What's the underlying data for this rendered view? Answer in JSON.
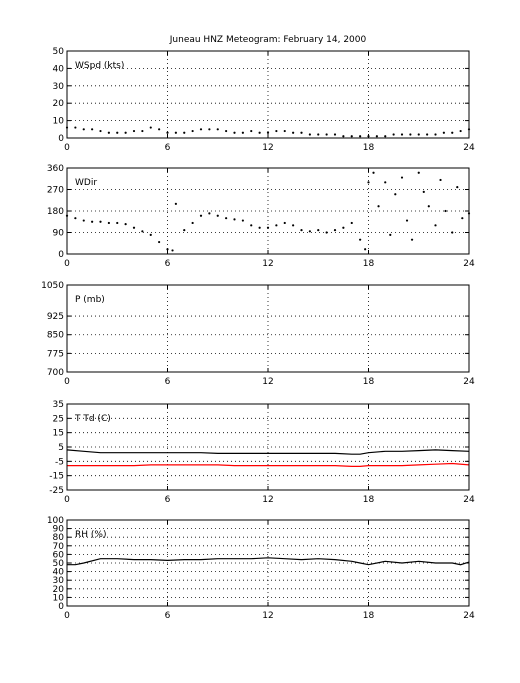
{
  "title": "Juneau HNZ Meteogram:  February 14, 2000",
  "chart_data": [
    {
      "type": "scatter",
      "panel_label": "WSpd (kts)",
      "xlim": [
        0,
        24
      ],
      "ylim": [
        0,
        50
      ],
      "xticks": [
        0,
        6,
        12,
        18,
        24
      ],
      "yticks": [
        0,
        10,
        20,
        30,
        40,
        50
      ],
      "grid": true,
      "series": [
        {
          "style": "dots",
          "color": "#000000",
          "x": [
            0,
            0.5,
            1,
            1.5,
            2,
            2.5,
            3,
            3.5,
            4,
            4.5,
            5,
            5.5,
            6,
            6.5,
            7,
            7.5,
            8,
            8.5,
            9,
            9.5,
            10,
            10.5,
            11,
            11.5,
            12,
            12.5,
            13,
            13.5,
            14,
            14.5,
            15,
            15.5,
            16,
            16.5,
            17,
            17.5,
            18,
            18.5,
            19,
            19.5,
            20,
            20.5,
            21,
            21.5,
            22,
            22.5,
            23,
            23.5,
            24
          ],
          "values": [
            6,
            6,
            5,
            5,
            4,
            3,
            3,
            3,
            4,
            4,
            6,
            5,
            3,
            3,
            3,
            4,
            5,
            5,
            5,
            4,
            3,
            3,
            4,
            3,
            3,
            4,
            4,
            3,
            3,
            2,
            2,
            2,
            2,
            1,
            1,
            1,
            1,
            1,
            1,
            2,
            2,
            2,
            2,
            2,
            2,
            3,
            3,
            4,
            5
          ]
        }
      ]
    },
    {
      "type": "scatter",
      "panel_label": "WDir",
      "xlim": [
        0,
        24
      ],
      "ylim": [
        0,
        360
      ],
      "xticks": [
        0,
        6,
        12,
        18,
        24
      ],
      "yticks": [
        0,
        90,
        180,
        270,
        360
      ],
      "grid": true,
      "series": [
        {
          "style": "dots",
          "color": "#000000",
          "x": [
            0,
            0.5,
            1,
            1.5,
            2,
            2.5,
            3,
            3.5,
            4,
            4.5,
            5,
            5.5,
            6,
            6.3,
            6.5,
            7,
            7.5,
            8,
            8.5,
            9,
            9.5,
            10,
            10.5,
            11,
            11.5,
            12,
            12.5,
            13,
            13.5,
            14,
            14.5,
            15,
            15.5,
            16,
            16.5,
            17,
            17.5,
            17.8,
            18,
            18.3,
            18.6,
            19,
            19.3,
            19.6,
            20,
            20.3,
            20.6,
            21,
            21.3,
            21.6,
            22,
            22.3,
            22.6,
            23,
            23.3,
            23.6,
            24
          ],
          "values": [
            160,
            150,
            140,
            135,
            135,
            130,
            130,
            125,
            110,
            95,
            80,
            50,
            20,
            15,
            210,
            100,
            130,
            160,
            170,
            160,
            150,
            145,
            140,
            120,
            110,
            110,
            120,
            130,
            120,
            100,
            95,
            100,
            90,
            100,
            110,
            130,
            60,
            20,
            300,
            340,
            200,
            300,
            80,
            250,
            320,
            140,
            60,
            340,
            260,
            200,
            120,
            310,
            180,
            90,
            280,
            150,
            170
          ]
        }
      ]
    },
    {
      "type": "scatter",
      "panel_label": "P (mb)",
      "xlim": [
        0,
        24
      ],
      "ylim": [
        700,
        1050
      ],
      "xticks": [
        0,
        6,
        12,
        18,
        24
      ],
      "yticks": [
        700,
        775,
        850,
        925,
        1050
      ],
      "grid": true,
      "series": []
    },
    {
      "type": "line",
      "panel_label": "T Td (C)",
      "xlim": [
        0,
        24
      ],
      "ylim": [
        -25,
        35
      ],
      "xticks": [
        0,
        6,
        12,
        18,
        24
      ],
      "yticks": [
        -25,
        -15,
        -5,
        5,
        15,
        25,
        35
      ],
      "grid": true,
      "series": [
        {
          "color": "#000000",
          "x": [
            0,
            1,
            2,
            3,
            4,
            5,
            6,
            7,
            8,
            9,
            10,
            11,
            12,
            13,
            14,
            15,
            16,
            17,
            17.5,
            18,
            19,
            20,
            21,
            22,
            23,
            24
          ],
          "values": [
            3,
            2,
            1,
            1,
            1,
            1,
            1,
            1,
            1,
            0.5,
            0.5,
            0.5,
            0.5,
            0.5,
            0.5,
            0.5,
            0.5,
            0,
            0,
            1,
            2,
            2,
            2.5,
            3,
            2.5,
            2
          ]
        },
        {
          "color": "#ff0000",
          "x": [
            0,
            1,
            2,
            3,
            4,
            5,
            6,
            7,
            8,
            9,
            10,
            11,
            12,
            13,
            14,
            15,
            16,
            17,
            17.5,
            18,
            19,
            20,
            21,
            22,
            23,
            24
          ],
          "values": [
            -8,
            -8,
            -8,
            -8,
            -8,
            -7.5,
            -7.5,
            -7.5,
            -7.5,
            -7.5,
            -8,
            -8,
            -8,
            -8,
            -8,
            -8,
            -8,
            -8.5,
            -8.5,
            -8,
            -8,
            -8,
            -7.5,
            -7,
            -6.5,
            -7.5
          ]
        }
      ]
    },
    {
      "type": "line",
      "panel_label": "RH (%)",
      "xlim": [
        0,
        24
      ],
      "ylim": [
        0,
        100
      ],
      "xticks": [
        0,
        6,
        12,
        18,
        24
      ],
      "yticks": [
        0,
        10,
        20,
        30,
        40,
        50,
        60,
        70,
        80,
        90,
        100
      ],
      "grid": true,
      "series": [
        {
          "color": "#000000",
          "x": [
            0,
            0.5,
            1,
            2,
            3,
            4,
            5,
            6,
            7,
            8,
            9,
            10,
            11,
            12,
            13,
            14,
            15,
            16,
            17,
            17.5,
            18,
            19,
            20,
            21,
            22,
            23,
            23.5,
            24
          ],
          "values": [
            48,
            48,
            50,
            55,
            55,
            54,
            54,
            53,
            54,
            54,
            55,
            55,
            55,
            56,
            55,
            54,
            55,
            54,
            52,
            50,
            48,
            52,
            50,
            52,
            50,
            50,
            48,
            51
          ]
        }
      ]
    }
  ]
}
